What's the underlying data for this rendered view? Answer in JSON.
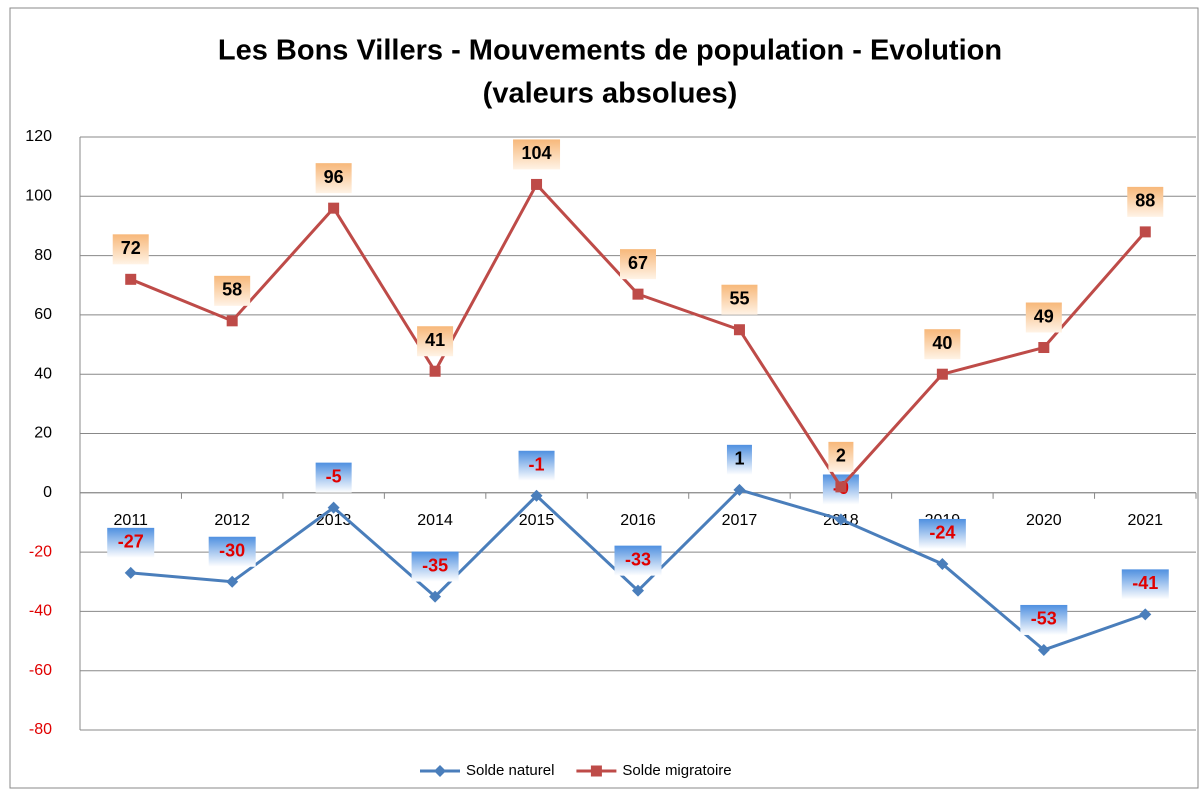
{
  "chart_data": {
    "type": "line",
    "title": [
      "Les Bons Villers - Mouvements de population - Evolution",
      "(valeurs absolues)"
    ],
    "categories": [
      "2011",
      "2012",
      "2013",
      "2014",
      "2015",
      "2016",
      "2017",
      "2018",
      "2019",
      "2020",
      "2021"
    ],
    "series": [
      {
        "name": "Solde naturel",
        "color": "#4a7ebb",
        "marker": "diamond",
        "values": [
          -27,
          -30,
          -5,
          -35,
          -1,
          -33,
          1,
          -9,
          -24,
          -53,
          -41
        ]
      },
      {
        "name": "Solde migratoire",
        "color": "#be4b48",
        "marker": "square",
        "values": [
          72,
          58,
          96,
          41,
          104,
          67,
          55,
          2,
          40,
          49,
          88
        ]
      }
    ],
    "ylim": [
      -80,
      120
    ],
    "yticks": [
      -80,
      -60,
      -40,
      -20,
      0,
      20,
      40,
      60,
      80,
      100,
      120
    ],
    "grid": true,
    "legend": "bottom"
  }
}
